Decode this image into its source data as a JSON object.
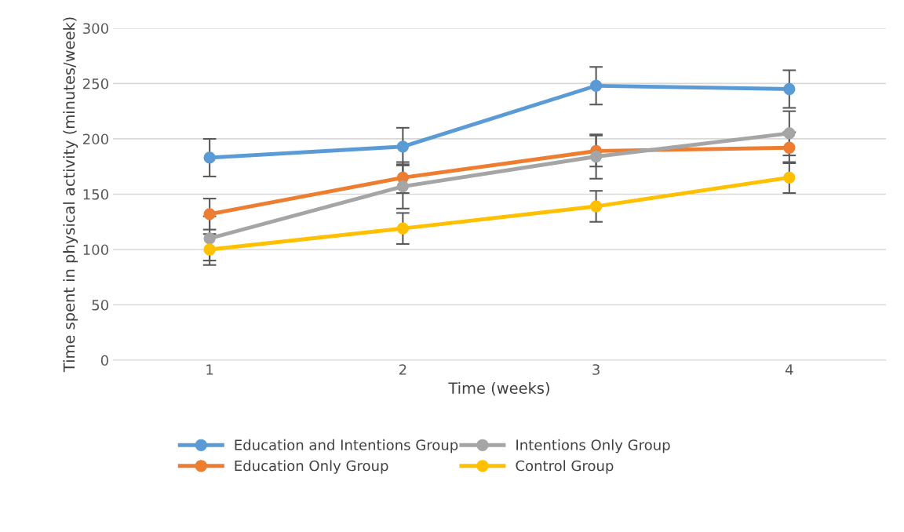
{
  "chart_data": {
    "type": "line",
    "xlabel": "Time (weeks)",
    "ylabel": "Time spent in physical activity (minutes/week)",
    "categories": [
      "1",
      "2",
      "3",
      "4"
    ],
    "ylim": [
      0,
      300
    ],
    "yticks": [
      0,
      50,
      100,
      150,
      200,
      250,
      300
    ],
    "grid": "y",
    "legend": "bottom",
    "marker": "circle",
    "line_style": "solid",
    "series": [
      {
        "name": "Education and Intentions Group",
        "color": "#5b9bd5",
        "values": [
          183,
          193,
          248,
          245
        ],
        "errors": [
          17,
          17,
          17,
          17
        ]
      },
      {
        "name": "Education Only Group",
        "color": "#ed7d31",
        "values": [
          132,
          165,
          189,
          192
        ],
        "errors": [
          14,
          14,
          14,
          14
        ]
      },
      {
        "name": "Intentions Only Group",
        "color": "#a5a5a5",
        "values": [
          110,
          157,
          184,
          205
        ],
        "errors": [
          20,
          20,
          20,
          20
        ]
      },
      {
        "name": "Control Group",
        "color": "#ffc000",
        "values": [
          100,
          119,
          139,
          165
        ],
        "errors": [
          14,
          14,
          14,
          14
        ]
      }
    ]
  }
}
